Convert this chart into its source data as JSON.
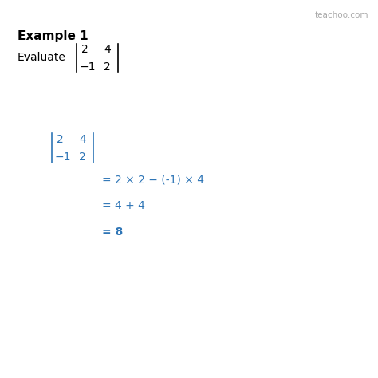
{
  "background_color": "#ffffff",
  "title": "Example 1",
  "title_fontsize": 11,
  "title_fontweight": "bold",
  "title_color": "#000000",
  "watermark": "teachoo.com",
  "watermark_fontsize": 7.5,
  "watermark_color": "#aaaaaa",
  "evaluate_text": "Evaluate",
  "evaluate_fontsize": 10,
  "evaluate_color": "#000000",
  "step1": "= 2 × 2 − (-1) × 4",
  "step2": "= 4 + 4",
  "step3": "= 8",
  "blue_color": "#2e75b6",
  "text_color": "#000000",
  "num_fontsize": 10,
  "step_fontsize": 10
}
